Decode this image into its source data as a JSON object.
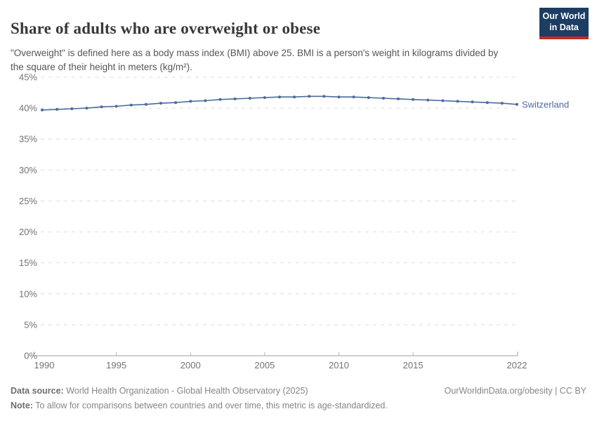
{
  "header": {
    "title": "Share of adults who are overweight or obese",
    "subtitle": "\"Overweight\" is defined here as a body mass index (BMI) above 25. BMI is a person's weight in kilograms divided by the square of their height in meters (kg/m²).",
    "logo": {
      "line1": "Our World",
      "line2": "in Data",
      "bg_color": "#1d3d63",
      "bar_color": "#c62a22"
    }
  },
  "chart_data": {
    "type": "line",
    "title": "Share of adults who are overweight or obese",
    "entity": "Switzerland",
    "unit": "%",
    "x": [
      1990,
      1991,
      1992,
      1993,
      1994,
      1995,
      1996,
      1997,
      1998,
      1999,
      2000,
      2001,
      2002,
      2003,
      2004,
      2005,
      2006,
      2007,
      2008,
      2009,
      2010,
      2011,
      2012,
      2013,
      2014,
      2015,
      2016,
      2017,
      2018,
      2019,
      2020,
      2021,
      2022
    ],
    "values": [
      39.7,
      39.8,
      39.9,
      40.0,
      40.2,
      40.3,
      40.5,
      40.6,
      40.8,
      40.9,
      41.1,
      41.2,
      41.4,
      41.5,
      41.6,
      41.7,
      41.8,
      41.8,
      41.9,
      41.9,
      41.8,
      41.8,
      41.7,
      41.6,
      41.5,
      41.4,
      41.3,
      41.2,
      41.1,
      41.0,
      40.9,
      40.8,
      40.6
    ],
    "xlim": [
      1990,
      2022
    ],
    "ylim": [
      0,
      45
    ],
    "yticks": [
      0,
      5,
      10,
      15,
      20,
      25,
      30,
      35,
      40,
      45
    ],
    "xticks": [
      1990,
      1995,
      2000,
      2005,
      2010,
      2015,
      2022
    ],
    "grid": true,
    "legend_position": "end-of-line",
    "line_color": "#4c6a9c",
    "xlabel": "",
    "ylabel": ""
  },
  "footer": {
    "data_source_label": "Data source:",
    "data_source_text": " World Health Organization - Global Health Observatory (2025)",
    "note_label": "Note:",
    "note_text": " To allow for comparisons between countries and over time, this metric is age-standardized.",
    "credit": "OurWorldinData.org/obesity | CC BY"
  }
}
